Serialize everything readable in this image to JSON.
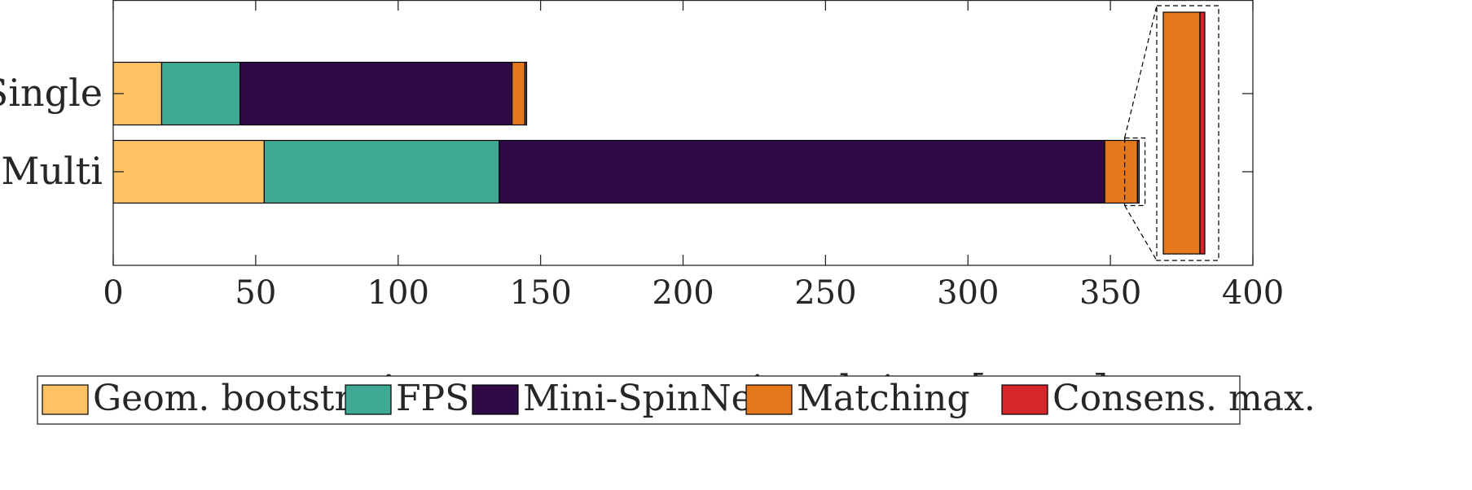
{
  "chart_data": {
    "type": "bar",
    "orientation": "horizontal",
    "stacked": true,
    "categories": [
      "Single",
      "Multi"
    ],
    "xlabel": "Average computational time [msec]",
    "ylabel": "",
    "xlim": [
      0,
      400
    ],
    "xticks": [
      0,
      50,
      100,
      150,
      200,
      250,
      300,
      350,
      400
    ],
    "grid": false,
    "legend_position": "bottom",
    "series": [
      {
        "name": "Geom. bootstr.",
        "color": "#FDC263",
        "values": [
          17,
          53
        ]
      },
      {
        "name": "FPS",
        "color": "#3FA996",
        "values": [
          27.5,
          82.5
        ]
      },
      {
        "name": "Mini-SpinNet",
        "color": "#2F0A47",
        "values": [
          95.5,
          212.5
        ]
      },
      {
        "name": "Matching",
        "color": "#E5781C",
        "values": [
          4.5,
          11.5
        ]
      },
      {
        "name": "Consens. max.",
        "color": "#D7262A",
        "values": [
          0.6,
          0.6
        ]
      }
    ],
    "inset": {
      "description": "zoom",
      "category": "Multi",
      "range": [
        355,
        361
      ]
    }
  }
}
